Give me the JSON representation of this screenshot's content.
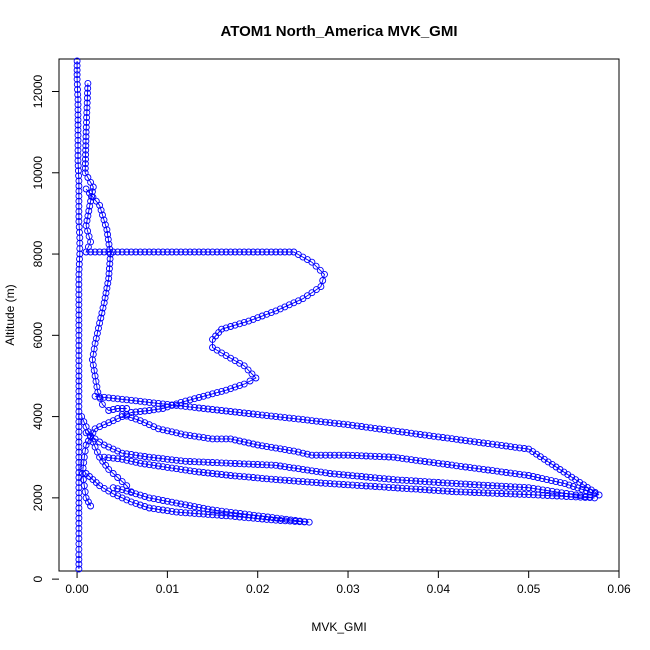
{
  "chart_data": {
    "type": "scatter",
    "title": "ATOM1 North_America MVK_GMI",
    "xlabel": "MVK_GMI",
    "ylabel": "Altitude (m)",
    "xlim": [
      -0.002,
      0.06
    ],
    "ylim": [
      200,
      12800
    ],
    "x_ticks": [
      0.0,
      0.01,
      0.02,
      0.03,
      0.04,
      0.05,
      0.06
    ],
    "x_tick_labels": [
      "0.00",
      "0.01",
      "0.02",
      "0.03",
      "0.04",
      "0.05",
      "0.06"
    ],
    "y_ticks": [
      0,
      2000,
      4000,
      6000,
      8000,
      10000,
      12000
    ],
    "y_tick_labels": [
      "0",
      "2000",
      "4000",
      "6000",
      "8000",
      "10000",
      "12000"
    ],
    "marker": "open-circle",
    "grid": false,
    "legend": "none",
    "colors": {
      "series": "#0000ff",
      "axes": "#000000",
      "background": "#ffffff"
    },
    "series": [
      {
        "values": [
          [
            0.0,
            12750
          ],
          [
            0.0,
            12300
          ],
          [
            0.0001,
            11800
          ],
          [
            0.0001,
            11300
          ],
          [
            0.0001,
            10800
          ],
          [
            0.0001,
            10300
          ],
          [
            0.0002,
            9800
          ],
          [
            0.0002,
            9300
          ],
          [
            0.0002,
            8800
          ],
          [
            0.0003,
            8400
          ],
          [
            0.0003,
            8000
          ],
          [
            0.0002,
            7500
          ],
          [
            0.0002,
            7000
          ],
          [
            0.0002,
            6500
          ],
          [
            0.0002,
            6000
          ],
          [
            0.0002,
            5500
          ],
          [
            0.0002,
            5000
          ],
          [
            0.0002,
            4500
          ],
          [
            0.0002,
            4000
          ],
          [
            0.0002,
            3500
          ],
          [
            0.0002,
            3000
          ],
          [
            0.0002,
            2500
          ],
          [
            0.0002,
            2000
          ],
          [
            0.0002,
            1500
          ],
          [
            0.0002,
            1000
          ],
          [
            0.0002,
            600
          ],
          [
            0.0002,
            250
          ]
        ]
      },
      {
        "values": [
          [
            0.0012,
            12200
          ],
          [
            0.001,
            11000
          ],
          [
            0.0009,
            10000
          ],
          [
            0.0018,
            9650
          ],
          [
            0.0015,
            9300
          ],
          [
            0.001,
            8700
          ],
          [
            0.0015,
            8300
          ],
          [
            0.001,
            8050
          ],
          [
            0.005,
            8050
          ],
          [
            0.01,
            8050
          ],
          [
            0.015,
            8050
          ],
          [
            0.02,
            8050
          ],
          [
            0.024,
            8050
          ],
          [
            0.026,
            7800
          ],
          [
            0.0274,
            7500
          ],
          [
            0.027,
            7200
          ],
          [
            0.025,
            6900
          ],
          [
            0.022,
            6600
          ],
          [
            0.019,
            6350
          ],
          [
            0.016,
            6150
          ],
          [
            0.015,
            5900
          ],
          [
            0.015,
            5700
          ],
          [
            0.0165,
            5500
          ],
          [
            0.0185,
            5250
          ],
          [
            0.0198,
            4950
          ],
          [
            0.0185,
            4800
          ],
          [
            0.0165,
            4650
          ],
          [
            0.014,
            4500
          ],
          [
            0.0115,
            4350
          ],
          [
            0.0095,
            4200
          ],
          [
            0.008,
            4150
          ],
          [
            0.006,
            4100
          ],
          [
            0.005,
            4000
          ],
          [
            0.004,
            3900
          ],
          [
            0.003,
            3800
          ],
          [
            0.002,
            3700
          ],
          [
            0.0015,
            3500
          ],
          [
            0.001,
            3300
          ],
          [
            0.0008,
            3000
          ],
          [
            0.0006,
            2600
          ],
          [
            0.0008,
            2300
          ],
          [
            0.001,
            2000
          ],
          [
            0.0015,
            1800
          ]
        ]
      },
      {
        "values": [
          [
            0.001,
            9600
          ],
          [
            0.0025,
            9200
          ],
          [
            0.0033,
            8600
          ],
          [
            0.0037,
            8000
          ],
          [
            0.0035,
            7400
          ],
          [
            0.003,
            6800
          ],
          [
            0.0025,
            6300
          ],
          [
            0.002,
            5800
          ],
          [
            0.0017,
            5400
          ],
          [
            0.002,
            5000
          ],
          [
            0.0023,
            4600
          ],
          [
            0.0028,
            4300
          ],
          [
            0.0035,
            4150
          ],
          [
            0.0045,
            4200
          ],
          [
            0.0055,
            4200
          ]
        ]
      },
      {
        "values": [
          [
            0.002,
            4500
          ],
          [
            0.01,
            4300
          ],
          [
            0.02,
            4050
          ],
          [
            0.03,
            3800
          ],
          [
            0.04,
            3500
          ],
          [
            0.05,
            3200
          ],
          [
            0.0578,
            2070
          ],
          [
            0.054,
            2350
          ],
          [
            0.05,
            2550
          ],
          [
            0.045,
            2700
          ],
          [
            0.04,
            2850
          ],
          [
            0.035,
            3000
          ],
          [
            0.03,
            3050
          ],
          [
            0.026,
            3050
          ],
          [
            0.024,
            3150
          ],
          [
            0.02,
            3300
          ],
          [
            0.017,
            3450
          ],
          [
            0.015,
            3450
          ],
          [
            0.012,
            3550
          ],
          [
            0.009,
            3700
          ],
          [
            0.007,
            3900
          ],
          [
            0.005,
            4050
          ]
        ]
      },
      {
        "values": [
          [
            0.001,
            3600
          ],
          [
            0.003,
            3300
          ],
          [
            0.005,
            3100
          ],
          [
            0.008,
            3000
          ],
          [
            0.012,
            2900
          ],
          [
            0.017,
            2850
          ],
          [
            0.022,
            2800
          ],
          [
            0.028,
            2600
          ],
          [
            0.035,
            2450
          ],
          [
            0.042,
            2350
          ],
          [
            0.05,
            2250
          ],
          [
            0.0573,
            2000
          ],
          [
            0.05,
            2080
          ],
          [
            0.042,
            2150
          ],
          [
            0.035,
            2250
          ],
          [
            0.028,
            2350
          ],
          [
            0.022,
            2450
          ],
          [
            0.017,
            2550
          ],
          [
            0.013,
            2650
          ],
          [
            0.01,
            2750
          ],
          [
            0.007,
            2850
          ],
          [
            0.005,
            2950
          ],
          [
            0.003,
            3000
          ]
        ]
      },
      {
        "values": [
          [
            0.001,
            2600
          ],
          [
            0.0025,
            2300
          ],
          [
            0.004,
            2100
          ],
          [
            0.006,
            1900
          ],
          [
            0.008,
            1750
          ],
          [
            0.011,
            1650
          ],
          [
            0.014,
            1600
          ],
          [
            0.017,
            1550
          ],
          [
            0.0195,
            1500
          ],
          [
            0.022,
            1450
          ],
          [
            0.0257,
            1400
          ],
          [
            0.015,
            1700
          ],
          [
            0.008,
            2000
          ],
          [
            0.005,
            2200
          ],
          [
            0.004,
            2250
          ]
        ]
      },
      {
        "values": [
          [
            0.0005,
            4000
          ],
          [
            0.0015,
            3500
          ],
          [
            0.0025,
            3000
          ],
          [
            0.0035,
            2700
          ],
          [
            0.0045,
            2500
          ],
          [
            0.0055,
            2300
          ],
          [
            0.006,
            2150
          ]
        ]
      }
    ]
  }
}
